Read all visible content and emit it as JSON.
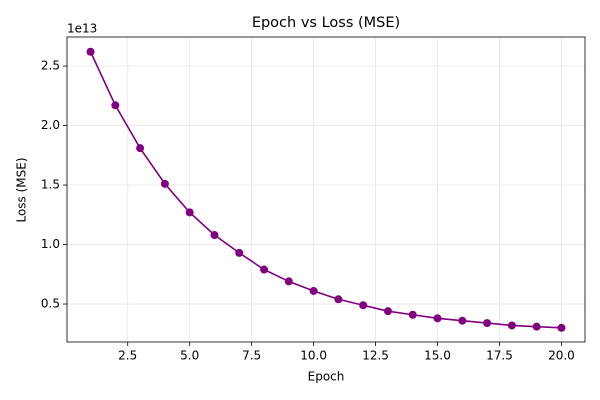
{
  "chart_data": {
    "type": "line",
    "title": "Epoch vs Loss (MSE)",
    "x_label": "Epoch",
    "y_label": "Loss (MSE)",
    "y_offset_label": "1e13",
    "x": [
      1,
      2,
      3,
      4,
      5,
      6,
      7,
      8,
      9,
      10,
      11,
      12,
      13,
      14,
      15,
      16,
      17,
      18,
      19,
      20
    ],
    "series": [
      {
        "name": "Loss (MSE)",
        "color": "#800080",
        "values": [
          2.62,
          2.17,
          1.81,
          1.51,
          1.27,
          1.08,
          0.93,
          0.79,
          0.69,
          0.61,
          0.54,
          0.49,
          0.44,
          0.41,
          0.38,
          0.36,
          0.34,
          0.32,
          0.31,
          0.3
        ]
      }
    ],
    "xlim": [
      0.05,
      20.95
    ],
    "ylim": [
      0.181,
      2.744
    ],
    "xticks": [
      2.5,
      {
        "value": 5,
        "label": "5.0"
      },
      7.5,
      {
        "value": 10,
        "label": "10.0"
      },
      12.5,
      {
        "value": 15,
        "label": "15.0"
      },
      17.5,
      {
        "value": 20,
        "label": "20.0"
      }
    ],
    "yticks": [
      0.5,
      {
        "value": 1,
        "label": "1.0"
      },
      1.5,
      {
        "value": 2,
        "label": "2.0"
      },
      2.5
    ],
    "grid": true
  }
}
